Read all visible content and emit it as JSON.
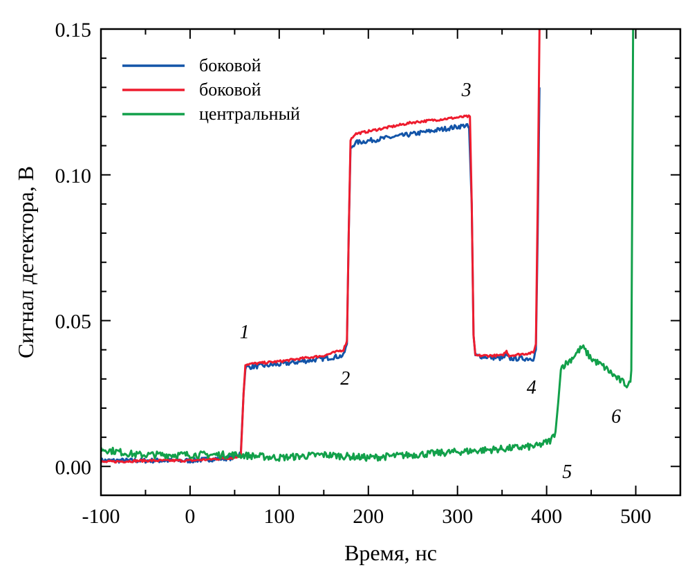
{
  "chart_data": {
    "type": "line",
    "title": "",
    "xlabel": "Время, нс",
    "ylabel": "Сигнал детектора, В",
    "xlim": [
      -100,
      550
    ],
    "ylim": [
      -0.0099,
      0.15
    ],
    "grid": false,
    "x_ticks": [
      -100,
      0,
      100,
      200,
      300,
      400,
      500
    ],
    "x_tick_labels": [
      "-100",
      "0",
      "100",
      "200",
      "300",
      "400",
      "500"
    ],
    "x_minor_step": 50,
    "y_ticks": [
      0.0,
      0.05,
      0.1,
      0.15
    ],
    "y_tick_labels": [
      "0.00",
      "0.05",
      "0.10",
      "0.15"
    ],
    "y_minor_step": 0.01,
    "legend": {
      "placement": "top-left",
      "entries": [
        {
          "label": "боковой",
          "color": "#1254a8"
        },
        {
          "label": "боковой",
          "color": "#ee1c2e"
        },
        {
          "label": "центральный",
          "color": "#12a04a"
        }
      ]
    },
    "series": [
      {
        "name": "боковой",
        "color": "#1254a8",
        "noise": 0.0008,
        "points": [
          [
            -100,
            0.002
          ],
          [
            -50,
            0.002
          ],
          [
            0,
            0.002
          ],
          [
            50,
            0.003
          ],
          [
            57,
            0.005
          ],
          [
            60,
            0.025
          ],
          [
            62,
            0.034
          ],
          [
            100,
            0.035
          ],
          [
            150,
            0.037
          ],
          [
            172,
            0.038
          ],
          [
            176,
            0.042
          ],
          [
            178,
            0.08
          ],
          [
            180,
            0.109
          ],
          [
            185,
            0.111
          ],
          [
            250,
            0.114
          ],
          [
            310,
            0.117
          ],
          [
            313,
            0.116
          ],
          [
            316,
            0.09
          ],
          [
            318,
            0.045
          ],
          [
            320,
            0.038
          ],
          [
            350,
            0.037
          ],
          [
            355,
            0.038
          ],
          [
            358,
            0.037
          ],
          [
            385,
            0.037
          ],
          [
            388,
            0.04
          ],
          [
            390,
            0.08
          ],
          [
            392,
            0.13
          ]
        ]
      },
      {
        "name": "боковой",
        "color": "#ee1c2e",
        "noise": 0.0004,
        "points": [
          [
            -100,
            0.0015
          ],
          [
            -50,
            0.002
          ],
          [
            0,
            0.002
          ],
          [
            50,
            0.003
          ],
          [
            57,
            0.004
          ],
          [
            60,
            0.025
          ],
          [
            62,
            0.035
          ],
          [
            100,
            0.036
          ],
          [
            150,
            0.038
          ],
          [
            172,
            0.04
          ],
          [
            176,
            0.043
          ],
          [
            178,
            0.08
          ],
          [
            180,
            0.112
          ],
          [
            185,
            0.114
          ],
          [
            250,
            0.118
          ],
          [
            310,
            0.12
          ],
          [
            314,
            0.12
          ],
          [
            316,
            0.09
          ],
          [
            318,
            0.045
          ],
          [
            320,
            0.038
          ],
          [
            350,
            0.038
          ],
          [
            355,
            0.0395
          ],
          [
            358,
            0.038
          ],
          [
            385,
            0.039
          ],
          [
            388,
            0.042
          ],
          [
            390,
            0.09
          ],
          [
            392,
            0.15
          ]
        ]
      },
      {
        "name": "центральный",
        "color": "#12a04a",
        "noise": 0.0012,
        "points": [
          [
            -100,
            0.006
          ],
          [
            -60,
            0.004
          ],
          [
            0,
            0.004
          ],
          [
            50,
            0.004
          ],
          [
            100,
            0.003
          ],
          [
            150,
            0.004
          ],
          [
            200,
            0.003
          ],
          [
            250,
            0.004
          ],
          [
            300,
            0.005
          ],
          [
            350,
            0.006
          ],
          [
            390,
            0.007
          ],
          [
            405,
            0.009
          ],
          [
            410,
            0.012
          ],
          [
            413,
            0.022
          ],
          [
            416,
            0.034
          ],
          [
            425,
            0.036
          ],
          [
            440,
            0.041
          ],
          [
            450,
            0.037
          ],
          [
            465,
            0.034
          ],
          [
            480,
            0.03
          ],
          [
            490,
            0.028
          ],
          [
            494,
            0.029
          ],
          [
            495,
            0.033
          ],
          [
            497,
            0.15
          ]
        ]
      }
    ],
    "annotations": [
      {
        "text": "1",
        "x": 61,
        "y": 0.044
      },
      {
        "text": "2",
        "x": 174,
        "y": 0.028
      },
      {
        "text": "3",
        "x": 310,
        "y": 0.127
      },
      {
        "text": "4",
        "x": 383,
        "y": 0.025
      },
      {
        "text": "5",
        "x": 423,
        "y": -0.004
      },
      {
        "text": "6",
        "x": 478,
        "y": 0.015
      }
    ]
  }
}
